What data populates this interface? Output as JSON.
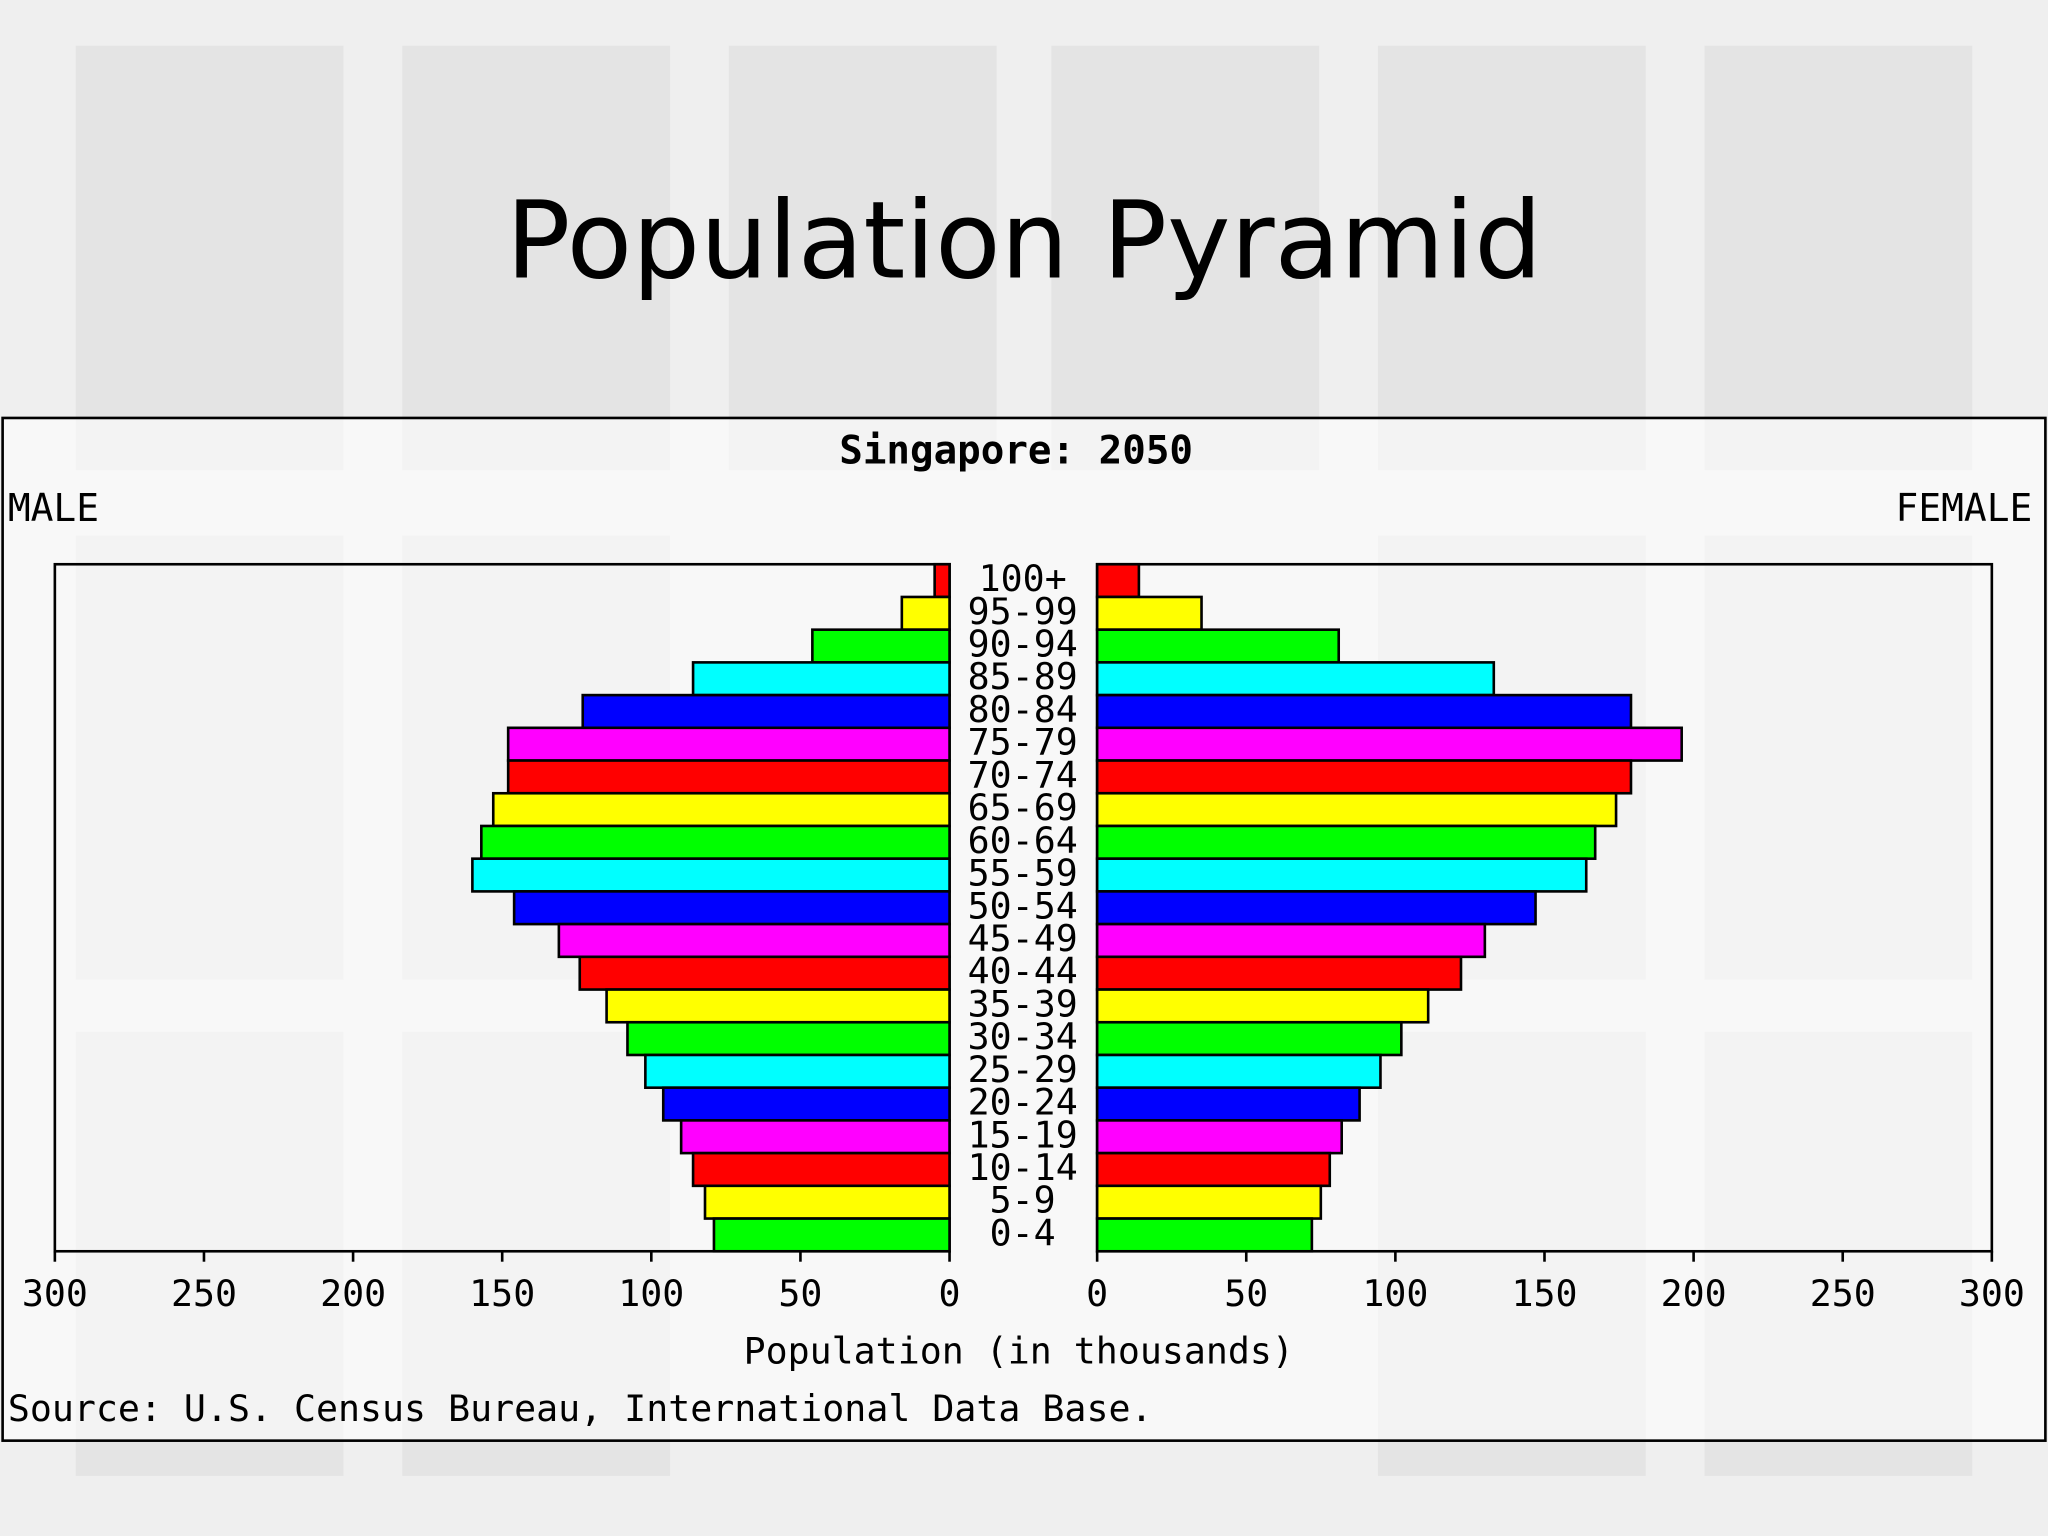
{
  "slide": {
    "title": "Population Pyramid"
  },
  "chart_data": {
    "type": "pyramid",
    "title": "Singapore: 2050",
    "xlabel": "Population (in thousands)",
    "source": "Source: U.S. Census Bureau, International Data Base.",
    "categories": [
      "100+",
      "95-99",
      "90-94",
      "85-89",
      "80-84",
      "75-79",
      "70-74",
      "65-69",
      "60-64",
      "55-59",
      "50-54",
      "45-49",
      "40-44",
      "35-39",
      "30-34",
      "25-29",
      "20-24",
      "15-19",
      "10-14",
      "5-9",
      "0-4"
    ],
    "colors": [
      "#ff0000",
      "#ffff00",
      "#00ff00",
      "#00ffff",
      "#0000ff",
      "#ff00ff",
      "#ff0000",
      "#ffff00",
      "#00ff00",
      "#00ffff",
      "#0000ff",
      "#ff00ff",
      "#ff0000",
      "#ffff00",
      "#00ff00",
      "#00ffff",
      "#0000ff",
      "#ff00ff",
      "#ff0000",
      "#ffff00",
      "#00ff00"
    ],
    "series": [
      {
        "name": "MALE",
        "values": [
          5,
          16,
          46,
          86,
          123,
          148,
          148,
          153,
          157,
          160,
          146,
          131,
          124,
          115,
          108,
          102,
          96,
          90,
          86,
          82,
          79
        ]
      },
      {
        "name": "FEMALE",
        "values": [
          14,
          35,
          81,
          133,
          179,
          196,
          179,
          174,
          167,
          164,
          147,
          130,
          122,
          111,
          102,
          95,
          88,
          82,
          78,
          75,
          72
        ]
      }
    ],
    "xlim": [
      0,
      300
    ],
    "xticks": [
      0,
      50,
      100,
      150,
      200,
      250,
      300
    ]
  }
}
